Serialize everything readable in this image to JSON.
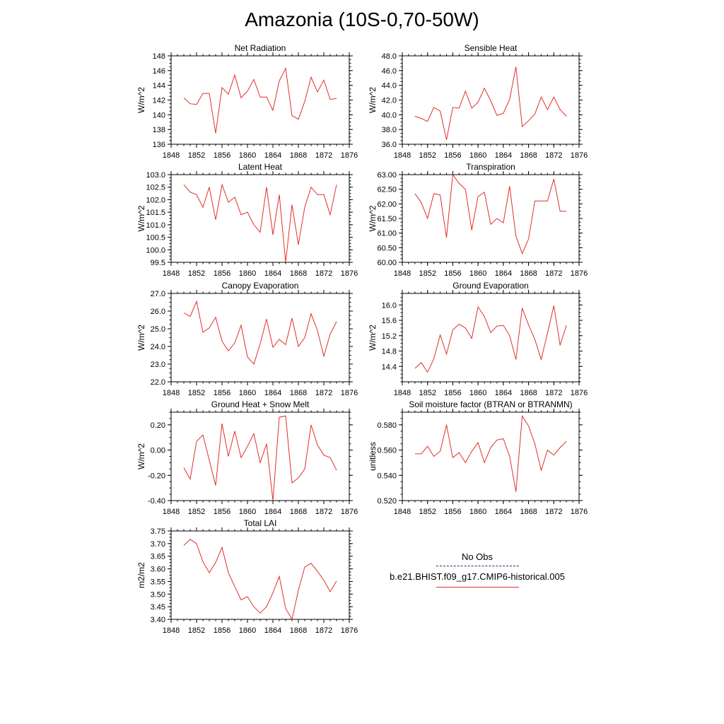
{
  "page": {
    "title": "Amazonia (10S-0,70-50W)"
  },
  "legend": {
    "obs_label": "No Obs",
    "obs_color": "#2b2b6b",
    "model_label": "b.e21.BHIST.f09_g17.CMIP6-historical.005",
    "model_color": "#e0302a"
  },
  "chart_data": [
    {
      "type": "line",
      "title": "Net Radiation",
      "ylabel": "W/m^2",
      "xlim": [
        1848,
        1876
      ],
      "ylim": [
        136,
        148
      ],
      "xticks": [
        "1848",
        "1852",
        "1856",
        "1860",
        "1864",
        "1868",
        "1872",
        "1876"
      ],
      "yticks": [
        "136",
        "138",
        "140",
        "142",
        "144",
        "146",
        "148"
      ],
      "x": [
        1850,
        1851,
        1852,
        1853,
        1854,
        1855,
        1856,
        1857,
        1858,
        1859,
        1860,
        1861,
        1862,
        1863,
        1864,
        1865,
        1866,
        1867,
        1868,
        1869,
        1870,
        1871,
        1872,
        1873,
        1874
      ],
      "series": [
        {
          "color": "#e0302a",
          "values": [
            142.3,
            141.5,
            141.4,
            142.9,
            142.9,
            137.5,
            143.7,
            142.8,
            145.4,
            142.3,
            143.2,
            144.8,
            142.4,
            142.4,
            140.6,
            144.6,
            146.3,
            139.9,
            139.4,
            141.8,
            145.1,
            143.1,
            144.7,
            142.1,
            142.2
          ]
        }
      ]
    },
    {
      "type": "line",
      "title": "Sensible Heat",
      "ylabel": "W/m^2",
      "xlim": [
        1848,
        1876
      ],
      "ylim": [
        36,
        48
      ],
      "xticks": [
        "1848",
        "1852",
        "1856",
        "1860",
        "1864",
        "1868",
        "1872",
        "1876"
      ],
      "yticks": [
        "36.0",
        "38.0",
        "40.0",
        "42.0",
        "44.0",
        "46.0",
        "48.0"
      ],
      "x": [
        1850,
        1851,
        1852,
        1853,
        1854,
        1855,
        1856,
        1857,
        1858,
        1859,
        1860,
        1861,
        1862,
        1863,
        1864,
        1865,
        1866,
        1867,
        1868,
        1869,
        1870,
        1871,
        1872,
        1873,
        1874
      ],
      "series": [
        {
          "color": "#e0302a",
          "values": [
            39.8,
            39.5,
            39.1,
            41.0,
            40.5,
            36.6,
            41.0,
            40.9,
            43.2,
            40.9,
            41.7,
            43.6,
            41.9,
            39.9,
            40.2,
            42.1,
            46.5,
            38.4,
            39.2,
            40.1,
            42.4,
            40.7,
            42.4,
            40.7,
            39.8
          ]
        }
      ]
    },
    {
      "type": "line",
      "title": "Latent Heat",
      "ylabel": "W/m^2",
      "xlim": [
        1848,
        1876
      ],
      "ylim": [
        99.5,
        103.0
      ],
      "xticks": [
        "1848",
        "1852",
        "1856",
        "1860",
        "1864",
        "1868",
        "1872",
        "1876"
      ],
      "yticks": [
        "99.5",
        "100.0",
        "100.5",
        "101.0",
        "101.5",
        "102.0",
        "102.5",
        "103.0"
      ],
      "x": [
        1850,
        1851,
        1852,
        1853,
        1854,
        1855,
        1856,
        1857,
        1858,
        1859,
        1860,
        1861,
        1862,
        1863,
        1864,
        1865,
        1866,
        1867,
        1868,
        1869,
        1870,
        1871,
        1872,
        1873,
        1874
      ],
      "series": [
        {
          "color": "#e0302a",
          "values": [
            102.6,
            102.3,
            102.2,
            101.7,
            102.5,
            101.2,
            102.6,
            101.9,
            102.1,
            101.4,
            101.5,
            101.0,
            100.7,
            102.5,
            100.6,
            102.2,
            99.5,
            101.8,
            100.2,
            101.7,
            102.5,
            102.2,
            102.2,
            101.4,
            102.6
          ]
        }
      ]
    },
    {
      "type": "line",
      "title": "Transpiration",
      "ylabel": "W/m^2",
      "xlim": [
        1848,
        1876
      ],
      "ylim": [
        60.0,
        63.0
      ],
      "xticks": [
        "1848",
        "1852",
        "1856",
        "1860",
        "1864",
        "1868",
        "1872",
        "1876"
      ],
      "yticks": [
        "60.00",
        "60.50",
        "61.00",
        "61.50",
        "62.00",
        "62.50",
        "63.00"
      ],
      "x": [
        1850,
        1851,
        1852,
        1853,
        1854,
        1855,
        1856,
        1857,
        1858,
        1859,
        1860,
        1861,
        1862,
        1863,
        1864,
        1865,
        1866,
        1867,
        1868,
        1869,
        1870,
        1871,
        1872,
        1873,
        1874
      ],
      "series": [
        {
          "color": "#e0302a",
          "values": [
            62.35,
            62.05,
            61.5,
            62.35,
            62.3,
            60.85,
            63.0,
            62.7,
            62.5,
            61.1,
            62.25,
            62.4,
            61.3,
            61.5,
            61.35,
            62.6,
            60.9,
            60.3,
            60.8,
            62.1,
            62.1,
            62.1,
            62.85,
            61.75,
            61.75
          ]
        }
      ]
    },
    {
      "type": "line",
      "title": "Canopy Evaporation",
      "ylabel": "W/m^2",
      "xlim": [
        1848,
        1876
      ],
      "ylim": [
        22.0,
        27.0
      ],
      "xticks": [
        "1848",
        "1852",
        "1856",
        "1860",
        "1864",
        "1868",
        "1872",
        "1876"
      ],
      "yticks": [
        "22.0",
        "23.0",
        "24.0",
        "25.0",
        "26.0",
        "27.0"
      ],
      "x": [
        1850,
        1851,
        1852,
        1853,
        1854,
        1855,
        1856,
        1857,
        1858,
        1859,
        1860,
        1861,
        1862,
        1863,
        1864,
        1865,
        1866,
        1867,
        1868,
        1869,
        1870,
        1871,
        1872,
        1873,
        1874
      ],
      "series": [
        {
          "color": "#e0302a",
          "values": [
            25.9,
            25.7,
            26.55,
            24.8,
            25.05,
            25.65,
            24.3,
            23.75,
            24.2,
            25.2,
            23.4,
            23.0,
            24.15,
            25.55,
            23.95,
            24.4,
            24.1,
            25.6,
            24.0,
            24.5,
            25.85,
            24.9,
            23.45,
            24.7,
            25.4
          ]
        }
      ]
    },
    {
      "type": "line",
      "title": "Ground Evaporation",
      "ylabel": "W/m^2",
      "xlim": [
        1848,
        1876
      ],
      "ylim": [
        14.0,
        16.3
      ],
      "xticks": [
        "1848",
        "1852",
        "1856",
        "1860",
        "1864",
        "1868",
        "1872",
        "1876"
      ],
      "yticks": [
        "14.4",
        "14.8",
        "15.2",
        "15.6",
        "16.0"
      ],
      "x": [
        1850,
        1851,
        1852,
        1853,
        1854,
        1855,
        1856,
        1857,
        1858,
        1859,
        1860,
        1861,
        1862,
        1863,
        1864,
        1865,
        1866,
        1867,
        1868,
        1869,
        1870,
        1871,
        1872,
        1873,
        1874
      ],
      "series": [
        {
          "color": "#e0302a",
          "values": [
            14.35,
            14.5,
            14.25,
            14.6,
            15.22,
            14.72,
            15.35,
            15.5,
            15.4,
            15.13,
            15.95,
            15.7,
            15.28,
            15.45,
            15.47,
            15.2,
            14.58,
            15.92,
            15.48,
            15.1,
            14.58,
            15.27,
            15.98,
            14.95,
            15.47
          ]
        }
      ]
    },
    {
      "type": "line",
      "title": "Ground Heat + Snow Melt",
      "ylabel": "W/m^2",
      "xlim": [
        1848,
        1876
      ],
      "ylim": [
        -0.4,
        0.3
      ],
      "xticks": [
        "1848",
        "1852",
        "1856",
        "1860",
        "1864",
        "1868",
        "1872",
        "1876"
      ],
      "yticks": [
        "-0.40",
        "-0.20",
        "0.00",
        "0.20"
      ],
      "x": [
        1850,
        1851,
        1852,
        1853,
        1854,
        1855,
        1856,
        1857,
        1858,
        1859,
        1860,
        1861,
        1862,
        1863,
        1864,
        1865,
        1866,
        1867,
        1868,
        1869,
        1870,
        1871,
        1872,
        1873,
        1874
      ],
      "series": [
        {
          "color": "#e0302a",
          "values": [
            -0.14,
            -0.23,
            0.07,
            0.12,
            -0.08,
            -0.28,
            0.21,
            -0.05,
            0.15,
            -0.06,
            0.03,
            0.13,
            -0.1,
            0.05,
            -0.4,
            0.26,
            0.27,
            -0.26,
            -0.22,
            -0.15,
            0.2,
            0.04,
            -0.04,
            -0.06,
            -0.16
          ]
        }
      ]
    },
    {
      "type": "line",
      "title": "Soil moisture factor (BTRAN or BTRANMN)",
      "ylabel": "unitless",
      "xlim": [
        1848,
        1876
      ],
      "ylim": [
        0.52,
        0.59
      ],
      "xticks": [
        "1848",
        "1852",
        "1856",
        "1860",
        "1864",
        "1868",
        "1872",
        "1876"
      ],
      "yticks": [
        "0.520",
        "0.540",
        "0.560",
        "0.580"
      ],
      "x": [
        1850,
        1851,
        1852,
        1853,
        1854,
        1855,
        1856,
        1857,
        1858,
        1859,
        1860,
        1861,
        1862,
        1863,
        1864,
        1865,
        1866,
        1867,
        1868,
        1869,
        1870,
        1871,
        1872,
        1873,
        1874
      ],
      "series": [
        {
          "color": "#e0302a",
          "values": [
            0.557,
            0.557,
            0.563,
            0.555,
            0.559,
            0.58,
            0.554,
            0.558,
            0.55,
            0.559,
            0.566,
            0.55,
            0.562,
            0.568,
            0.569,
            0.555,
            0.527,
            0.587,
            0.579,
            0.565,
            0.544,
            0.56,
            0.556,
            0.562,
            0.567
          ]
        }
      ]
    },
    {
      "type": "line",
      "title": "Total LAI",
      "ylabel": "m2/m2",
      "xlim": [
        1848,
        1876
      ],
      "ylim": [
        3.4,
        3.75
      ],
      "xticks": [
        "1848",
        "1852",
        "1856",
        "1860",
        "1864",
        "1868",
        "1872",
        "1876"
      ],
      "yticks": [
        "3.40",
        "3.45",
        "3.50",
        "3.55",
        "3.60",
        "3.65",
        "3.70",
        "3.75"
      ],
      "x": [
        1850,
        1851,
        1852,
        1853,
        1854,
        1855,
        1856,
        1857,
        1858,
        1859,
        1860,
        1861,
        1862,
        1863,
        1864,
        1865,
        1866,
        1867,
        1868,
        1869,
        1870,
        1871,
        1872,
        1873,
        1874
      ],
      "series": [
        {
          "color": "#e0302a",
          "values": [
            3.693,
            3.717,
            3.7,
            3.628,
            3.585,
            3.625,
            3.685,
            3.585,
            3.53,
            3.477,
            3.49,
            3.45,
            3.425,
            3.45,
            3.505,
            3.57,
            3.443,
            3.4,
            3.515,
            3.607,
            3.622,
            3.59,
            3.555,
            3.51,
            3.552
          ]
        }
      ]
    }
  ]
}
